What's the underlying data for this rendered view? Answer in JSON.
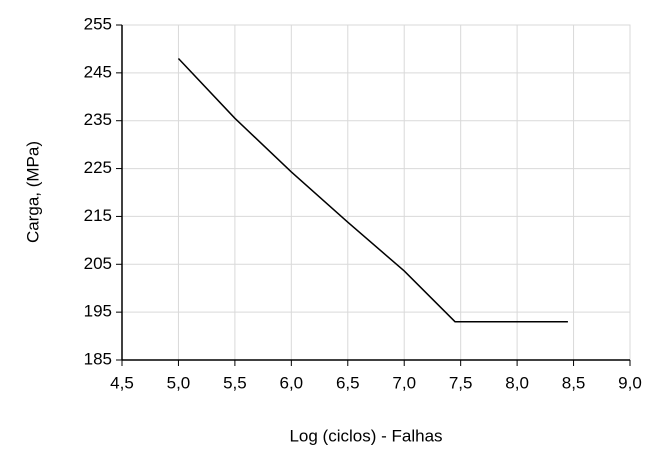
{
  "chart_data": {
    "type": "line",
    "x_label": "Log (ciclos) - Falhas",
    "y_label": "Carga, (MPa)",
    "series": [
      {
        "color": "#000000",
        "x": [
          5.0,
          5.5,
          6.0,
          6.5,
          7.0,
          7.45,
          8.45
        ],
        "values": [
          248,
          235.5,
          224.3,
          213.8,
          203.6,
          193,
          193
        ]
      }
    ],
    "xlim": [
      4.5,
      9.0
    ],
    "xticks": [
      {
        "value": 4.5,
        "label": "4,5"
      },
      {
        "value": 5.0,
        "label": "5,0"
      },
      {
        "value": 5.5,
        "label": "5,5"
      },
      {
        "value": 6.0,
        "label": "6,0"
      },
      {
        "value": 6.5,
        "label": "6,5"
      },
      {
        "value": 7.0,
        "label": "7,0"
      },
      {
        "value": 7.5,
        "label": "7,5"
      },
      {
        "value": 8.0,
        "label": "8,0"
      },
      {
        "value": 8.5,
        "label": "8,5"
      },
      {
        "value": 9.0,
        "label": "9,0"
      }
    ],
    "ylim": [
      185,
      255
    ],
    "yticks": [
      185,
      195,
      205,
      215,
      225,
      235,
      245,
      255
    ],
    "grid": true
  }
}
